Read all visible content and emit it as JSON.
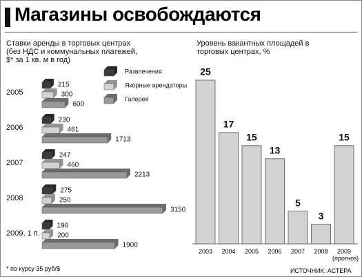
{
  "title": "Магазины освобождаются",
  "chart_data": [
    {
      "type": "hbar",
      "title": "Ставки аренды в торговых центрах (без НДС и коммунальных платежей, $* за 1 кв. м в год)",
      "categories": [
        "2005",
        "2006",
        "2007",
        "2008",
        "2009, 1 п."
      ],
      "series": [
        {
          "name": "Развлечения",
          "color": "#3a3a3a",
          "values": [
            215,
            230,
            247,
            275,
            190
          ]
        },
        {
          "name": "Якорные арендаторы",
          "color": "#d4d4d4",
          "values": [
            300,
            461,
            460,
            250,
            200
          ]
        },
        {
          "name": "Галерея",
          "color": "#9a9a9a",
          "values": [
            600,
            1713,
            2213,
            3150,
            1900
          ]
        }
      ]
    },
    {
      "type": "bar",
      "title": "Уровень вакантных площадей в торговых центрах, %",
      "categories": [
        "2003",
        "2004",
        "2005",
        "2006",
        "2007",
        "2008",
        "2009 (прогноз)"
      ],
      "values": [
        25,
        17,
        15,
        13,
        5,
        3,
        15
      ],
      "color": "#d2d2d2"
    }
  ],
  "footnote": "* по курсу 35 руб/$",
  "source": "ИСТОЧНИК: АСТЕРА"
}
